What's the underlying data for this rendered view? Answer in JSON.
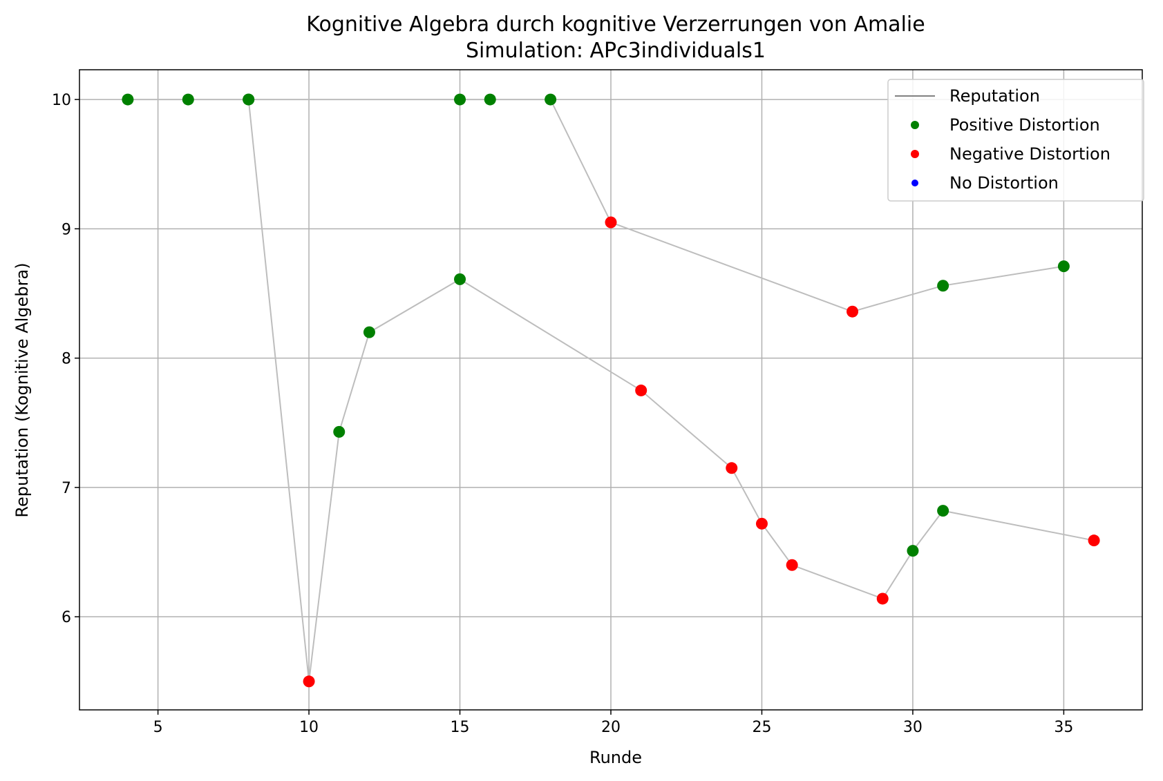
{
  "chart_data": {
    "type": "line",
    "title": "Kognitive Algebra durch kognitive Verzerrungen von Amalie",
    "subtitle": "Simulation: APc3individuals1",
    "xlabel": "Runde",
    "ylabel": "Reputation (Kognitive Algebra)",
    "xlim": [
      2.4,
      37.6
    ],
    "ylim": [
      5.28,
      10.23
    ],
    "xticks": [
      5,
      10,
      15,
      20,
      25,
      30,
      35
    ],
    "yticks": [
      6,
      7,
      8,
      9,
      10
    ],
    "grid": true,
    "legend_position": "top-right",
    "legend": [
      {
        "label": "Reputation",
        "kind": "line",
        "color": "#808080"
      },
      {
        "label": "Positive Distortion",
        "kind": "dot",
        "color": "#008000"
      },
      {
        "label": "Negative Distortion",
        "kind": "dot",
        "color": "#ff0000"
      },
      {
        "label": "No Distortion",
        "kind": "dot",
        "color": "#0000ff"
      }
    ],
    "line_color": "#bdbdbd",
    "series": [
      {
        "points": [
          {
            "x": 4,
            "y": 10.0,
            "d": "positive"
          },
          {
            "x": 6,
            "y": 10.0,
            "d": "positive"
          },
          {
            "x": 8,
            "y": 10.0,
            "d": "positive"
          },
          {
            "x": 15,
            "y": 10.0,
            "d": "positive"
          },
          {
            "x": 16,
            "y": 10.0,
            "d": "positive"
          },
          {
            "x": 18,
            "y": 10.0,
            "d": "positive"
          },
          {
            "x": 20,
            "y": 9.05,
            "d": "negative"
          },
          {
            "x": 28,
            "y": 8.36,
            "d": "negative"
          },
          {
            "x": 31,
            "y": 8.56,
            "d": "positive"
          },
          {
            "x": 35,
            "y": 8.71,
            "d": "positive"
          }
        ]
      },
      {
        "points": [
          {
            "x": 8,
            "y": 10.0,
            "d": "positive"
          },
          {
            "x": 10,
            "y": 5.5,
            "d": "negative"
          },
          {
            "x": 11,
            "y": 7.43,
            "d": "positive"
          },
          {
            "x": 12,
            "y": 8.2,
            "d": "positive"
          },
          {
            "x": 15,
            "y": 8.61,
            "d": "positive"
          },
          {
            "x": 21,
            "y": 7.75,
            "d": "negative"
          },
          {
            "x": 24,
            "y": 7.15,
            "d": "negative"
          },
          {
            "x": 25,
            "y": 6.72,
            "d": "negative"
          },
          {
            "x": 26,
            "y": 6.4,
            "d": "negative"
          },
          {
            "x": 29,
            "y": 6.14,
            "d": "negative"
          },
          {
            "x": 30,
            "y": 6.51,
            "d": "positive"
          },
          {
            "x": 31,
            "y": 6.82,
            "d": "positive"
          },
          {
            "x": 36,
            "y": 6.59,
            "d": "negative"
          }
        ]
      }
    ],
    "colors": {
      "positive": "#008000",
      "negative": "#ff0000",
      "none": "#0000ff"
    }
  }
}
